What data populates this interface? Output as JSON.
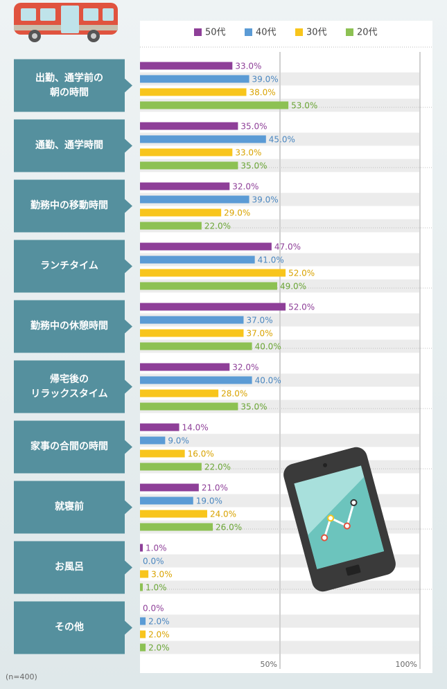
{
  "chart_data": {
    "type": "bar",
    "orientation": "horizontal",
    "categories": [
      "出勤、通学前の\n朝の時間",
      "通勤、通学時間",
      "勤務中の移動時間",
      "ランチタイム",
      "勤務中の休憩時間",
      "帰宅後の\nリラックスタイム",
      "家事の合間の時間",
      "就寝前",
      "お風呂",
      "その他"
    ],
    "series": [
      {
        "name": "50代",
        "color": "#8e3f98",
        "label_color": "#8e3f98",
        "values": [
          33,
          35,
          32,
          47,
          52,
          32,
          14,
          21,
          1,
          0
        ],
        "value_labels": [
          "33.0%",
          "35.0%",
          "32.0%",
          "47.0%",
          "52.0%",
          "32.0%",
          "14.0%",
          "21.0%",
          "1.0%",
          "0.0%"
        ]
      },
      {
        "name": "40代",
        "color": "#5b9bd5",
        "label_color": "#4a86bf",
        "values": [
          39,
          45,
          39,
          41,
          37,
          40,
          9,
          19,
          0,
          2
        ],
        "value_labels": [
          "39.0%",
          "45.0%",
          "39.0%",
          "41.0%",
          "37.0%",
          "40.0%",
          "9.0%",
          "19.0%",
          "0.0%",
          "2.0%"
        ]
      },
      {
        "name": "30代",
        "color": "#f8c51c",
        "label_color": "#d9a300",
        "values": [
          38,
          33,
          29,
          52,
          37,
          28,
          16,
          24,
          3,
          2
        ],
        "value_labels": [
          "38.0%",
          "33.0%",
          "29.0%",
          "52.0%",
          "37.0%",
          "28.0%",
          "16.0%",
          "24.0%",
          "3.0%",
          "2.0%"
        ]
      },
      {
        "name": "20代",
        "color": "#8dc153",
        "label_color": "#6aa535",
        "values": [
          53,
          35,
          22,
          49,
          40,
          35,
          22,
          26,
          1,
          2
        ],
        "value_labels": [
          "53.0%",
          "35.0%",
          "22.0%",
          "49.0%",
          "40.0%",
          "35.0%",
          "22.0%",
          "26.0%",
          "1.0%",
          "2.0%"
        ]
      }
    ],
    "xlim": [
      0,
      100
    ],
    "xticks": [
      {
        "value": 50,
        "label": "50%"
      },
      {
        "value": 100,
        "label": "100%"
      }
    ],
    "grid": true,
    "legend": "top",
    "note": "(n=400)"
  }
}
